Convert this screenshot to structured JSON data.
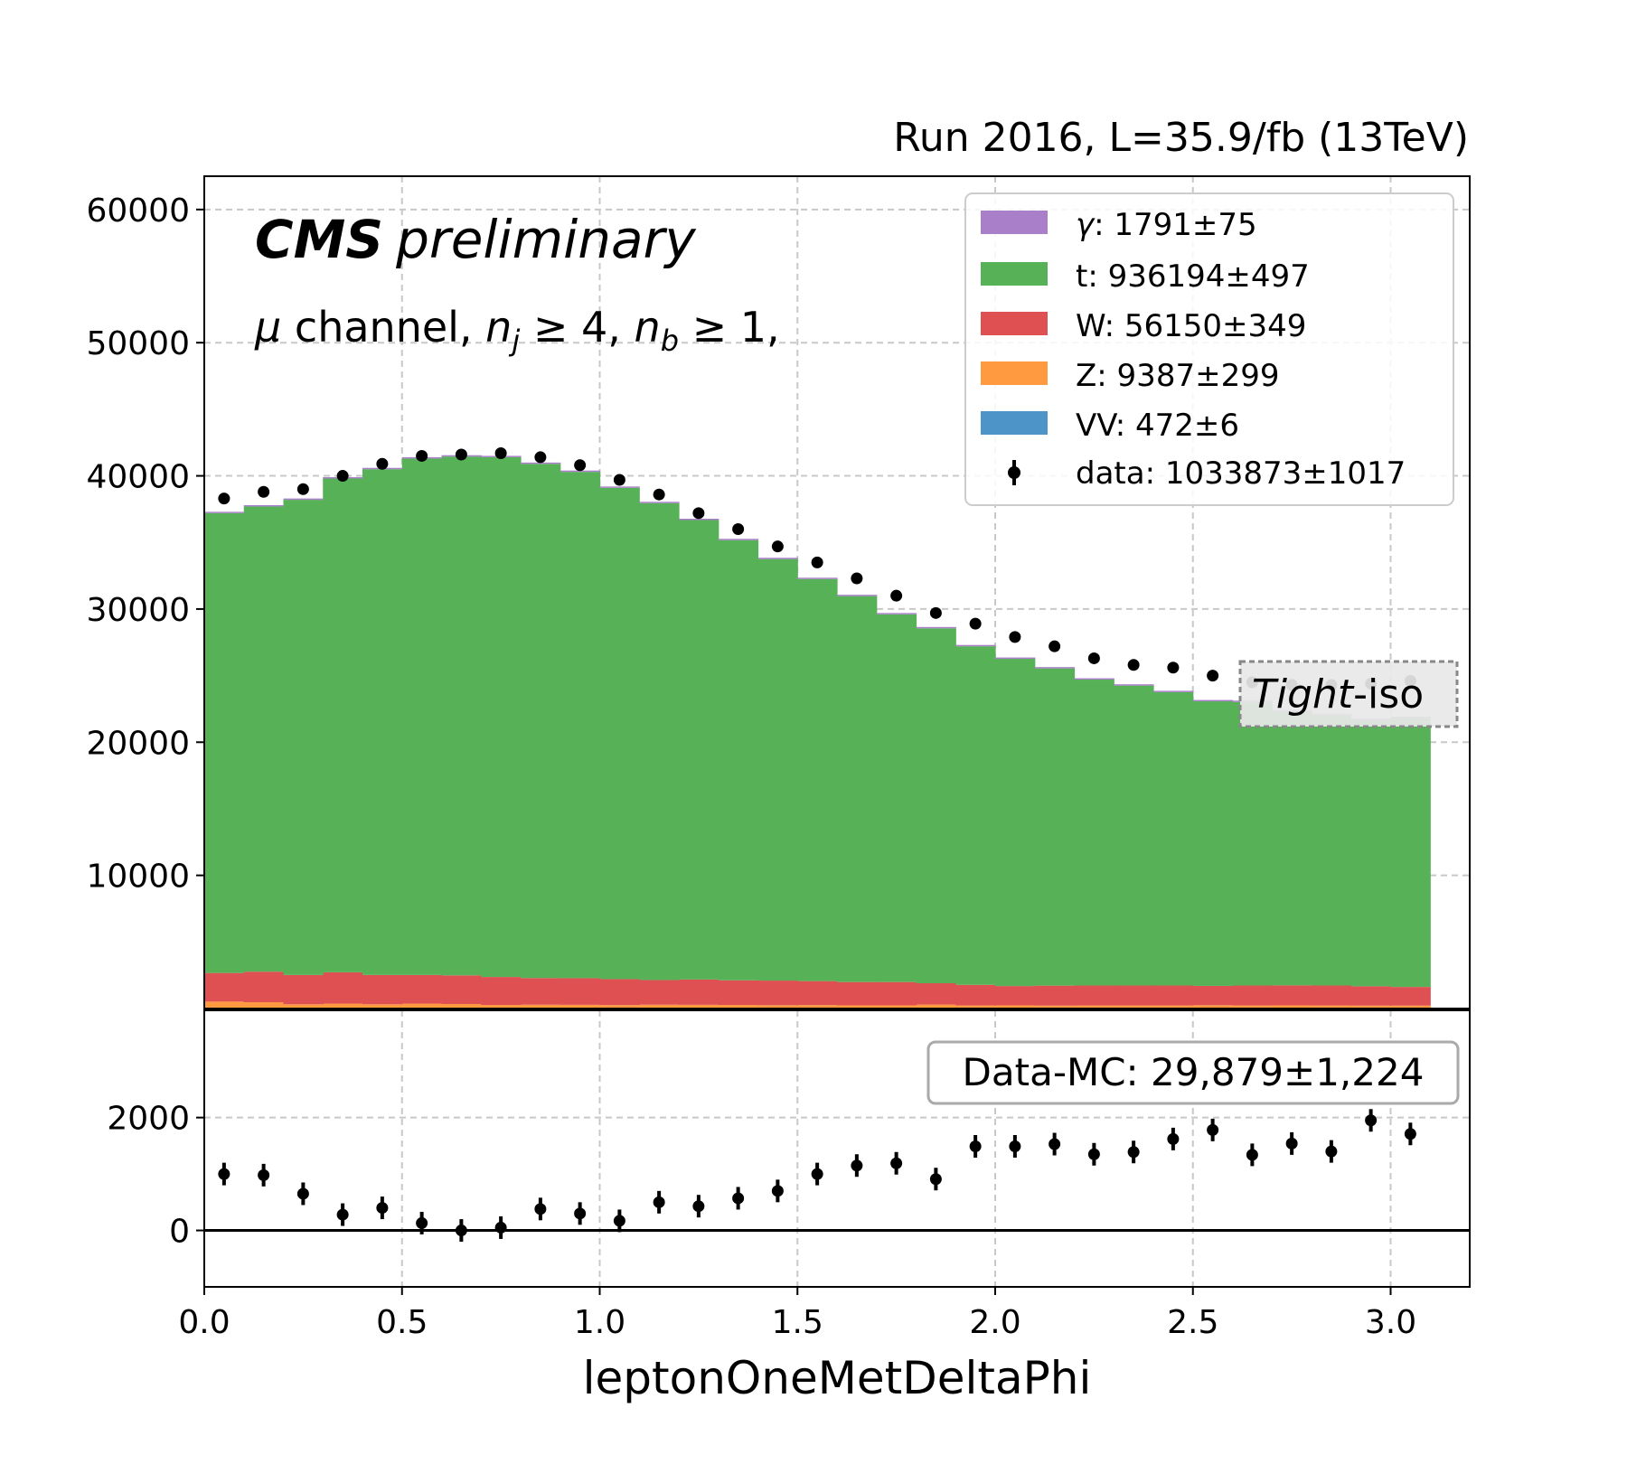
{
  "header": "Run 2016, L=35.9/fb (13TeV)",
  "cms_bold": "CMS",
  "cms_italic": "preliminary",
  "channel_parts": {
    "mu": "μ",
    "channel": " channel, ",
    "n": "n",
    "j": "j",
    "geq4": " ≥ 4, ",
    "b": "b",
    "geq1": " ≥ 1,"
  },
  "badge": {
    "italic": "Tight",
    "rest": "-iso"
  },
  "ratio_badge": "Data-MC: 29,879±1,224",
  "colors": {
    "gamma": "#a87fc8",
    "top": "#57b157",
    "W": "#de5052",
    "Z": "#ff9a40",
    "VV": "#4d94c8",
    "data": "#000000"
  },
  "chart_data": [
    {
      "type": "bar",
      "subtype": "stacked-histogram-with-data-points",
      "xlabel": "leptonOneMetDeltaPhi",
      "ylabel": "",
      "xlim": [
        0.0,
        3.2
      ],
      "ylim": [
        0,
        62500
      ],
      "yticks": [
        10000,
        20000,
        30000,
        40000,
        50000,
        60000
      ],
      "grid": true,
      "legend_position": "top-right",
      "bin_edges": [
        0.0,
        0.1,
        0.2,
        0.3,
        0.4,
        0.5,
        0.6,
        0.7,
        0.8,
        0.9,
        1.0,
        1.1,
        1.2,
        1.3,
        1.4,
        1.5,
        1.6,
        1.7,
        1.8,
        1.9,
        2.0,
        2.1,
        2.2,
        2.3,
        2.4,
        2.5,
        2.6,
        2.7,
        2.8,
        2.9,
        3.0,
        3.1
      ],
      "series": [
        {
          "name": "VV",
          "legend_label": "VV: 472±6",
          "color": "#4d94c8",
          "values": [
            20,
            20,
            20,
            20,
            20,
            20,
            20,
            20,
            20,
            20,
            20,
            20,
            20,
            20,
            20,
            20,
            20,
            20,
            20,
            20,
            20,
            20,
            20,
            20,
            20,
            20,
            20,
            20,
            20,
            20,
            20
          ]
        },
        {
          "name": "Z",
          "legend_label": "Z: 9387±299",
          "color": "#ff9a40",
          "values": [
            500,
            450,
            300,
            350,
            300,
            350,
            320,
            250,
            270,
            260,
            240,
            270,
            260,
            250,
            230,
            240,
            220,
            220,
            280,
            210,
            220,
            200,
            210,
            210,
            210,
            230,
            210,
            220,
            210,
            200,
            200
          ]
        },
        {
          "name": "W",
          "legend_label": "W: 56150±349",
          "color": "#de5052",
          "values": [
            2150,
            2300,
            2200,
            2350,
            2200,
            2150,
            2150,
            2100,
            2000,
            2000,
            1950,
            1850,
            1900,
            1850,
            1850,
            1800,
            1750,
            1750,
            1600,
            1550,
            1450,
            1500,
            1500,
            1500,
            1500,
            1450,
            1500,
            1500,
            1500,
            1450,
            1400
          ]
        },
        {
          "name": "t",
          "legend_label": "t: 936194±497",
          "color": "#57b157",
          "values": [
            34530,
            34930,
            35680,
            37080,
            37980,
            38780,
            38960,
            39030,
            38610,
            38020,
            36890,
            35810,
            34500,
            33050,
            31650,
            30190,
            28980,
            27610,
            26650,
            25420,
            24570,
            23820,
            22970,
            22520,
            22030,
            21370,
            21290,
            20600,
            20310,
            20000,
            20200
          ]
        },
        {
          "name": "γ",
          "legend_label": "γ: 1791±75",
          "color": "#a87fc8",
          "values": [
            100,
            100,
            100,
            100,
            100,
            100,
            100,
            100,
            100,
            100,
            100,
            100,
            100,
            100,
            100,
            100,
            100,
            100,
            100,
            100,
            100,
            100,
            100,
            100,
            100,
            100,
            100,
            100,
            100,
            100,
            100
          ]
        }
      ],
      "data": {
        "name": "data",
        "legend_label": "data: 1033873±1017",
        "x": [
          0.05,
          0.15,
          0.25,
          0.35,
          0.45,
          0.55,
          0.65,
          0.75,
          0.85,
          0.95,
          1.05,
          1.15,
          1.25,
          1.35,
          1.45,
          1.55,
          1.65,
          1.75,
          1.85,
          1.95,
          2.05,
          2.15,
          2.25,
          2.35,
          2.45,
          2.55,
          2.65,
          2.75,
          2.85,
          2.95,
          3.05
        ],
        "values": [
          38300,
          38800,
          39000,
          40000,
          40900,
          41500,
          41600,
          41700,
          41400,
          40800,
          39700,
          38600,
          37200,
          36000,
          34700,
          33500,
          32300,
          31000,
          29700,
          28900,
          27900,
          27200,
          26300,
          25800,
          25600,
          25000,
          24500,
          24300,
          24300,
          24400,
          24600
        ]
      }
    },
    {
      "type": "scatter",
      "subtype": "data-minus-mc-with-error-bars",
      "xlabel": "leptonOneMetDeltaPhi",
      "xlim": [
        0.0,
        3.2
      ],
      "ylim": [
        -1000,
        3900
      ],
      "yticks": [
        0,
        2000
      ],
      "xticks": [
        0.0,
        0.5,
        1.0,
        1.5,
        2.0,
        2.5,
        3.0
      ],
      "xtick_labels": [
        "0.0",
        "0.5",
        "1.0",
        "1.5",
        "2.0",
        "2.5",
        "3.0"
      ],
      "grid": true,
      "reference_line": 0,
      "x": [
        0.05,
        0.15,
        0.25,
        0.35,
        0.45,
        0.55,
        0.65,
        0.75,
        0.85,
        0.95,
        1.05,
        1.15,
        1.25,
        1.35,
        1.45,
        1.55,
        1.65,
        1.75,
        1.85,
        1.95,
        2.05,
        2.15,
        2.25,
        2.35,
        2.45,
        2.55,
        2.65,
        2.75,
        2.85,
        2.95,
        3.05
      ],
      "values": [
        1000,
        980,
        650,
        280,
        400,
        130,
        0,
        50,
        380,
        300,
        170,
        500,
        430,
        570,
        700,
        1000,
        1150,
        1190,
        910,
        1490,
        1490,
        1530,
        1350,
        1390,
        1620,
        1780,
        1340,
        1540,
        1400,
        1950,
        1710
      ],
      "errors": [
        200,
        200,
        200,
        200,
        200,
        200,
        200,
        200,
        200,
        200,
        200,
        200,
        200,
        200,
        200,
        200,
        200,
        200,
        200,
        200,
        200,
        200,
        200,
        200,
        200,
        200,
        200,
        200,
        200,
        200,
        200
      ]
    }
  ]
}
